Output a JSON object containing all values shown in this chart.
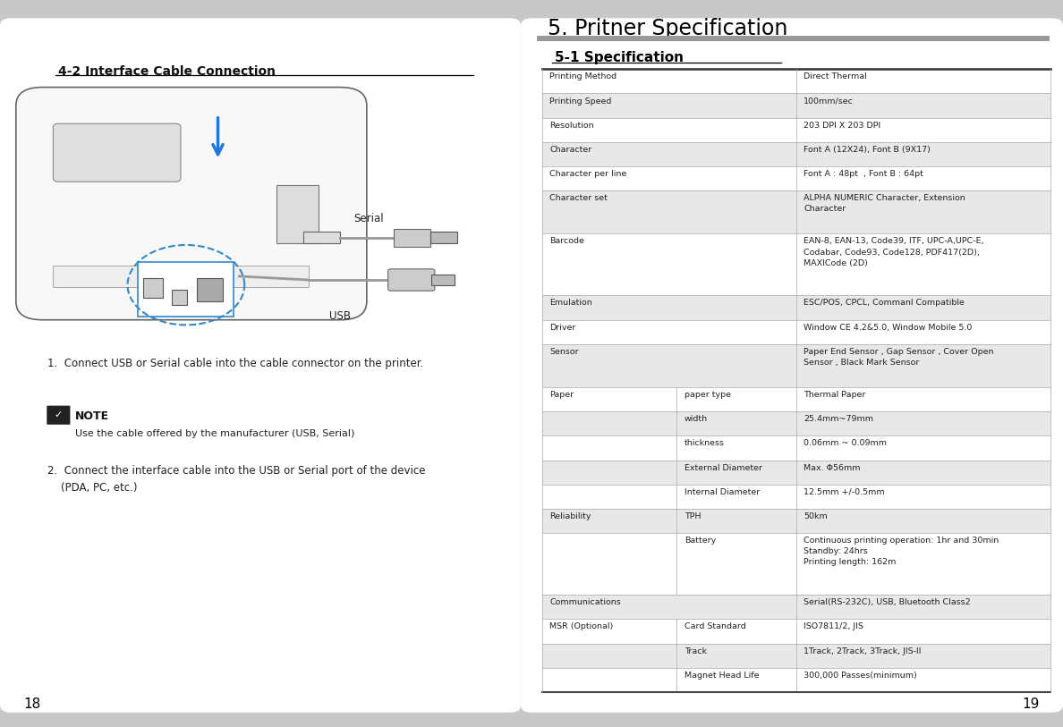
{
  "bg_color": "#c8c8c8",
  "page_bg": "#ffffff",
  "left_title": "4-2 Interface Cable Connection",
  "right_header": "5. Pritner Specification",
  "right_section_title": "5-1 Specification",
  "step1": "1.  Connect USB or Serial cable into the cable connector on the printer.",
  "note_title": "NOTE",
  "note_text": "Use the cable offered by the manufacturer (USB, Serial)",
  "step2": "2.  Connect the interface cable into the USB or Serial port of the device\n    (PDA, PC, etc.)",
  "page_left": "18",
  "page_right": "19",
  "table_rows": [
    {
      "col1": "Printing Method",
      "col2": "",
      "col3": "Direct Thermal",
      "shaded": false
    },
    {
      "col1": "Printing Speed",
      "col2": "",
      "col3": "100mm/sec",
      "shaded": true
    },
    {
      "col1": "Resolution",
      "col2": "",
      "col3": "203 DPI X 203 DPI",
      "shaded": false
    },
    {
      "col1": "Character",
      "col2": "",
      "col3": "Font A (12X24), Font B (9X17)",
      "shaded": true
    },
    {
      "col1": "Character per line",
      "col2": "",
      "col3": "Font A : 48pt  , Font B : 64pt",
      "shaded": false
    },
    {
      "col1": "Character set",
      "col2": "",
      "col3": "ALPHA NUMERIC Character, Extension\nCharacter",
      "shaded": true
    },
    {
      "col1": "Barcode",
      "col2": "",
      "col3": "EAN-8, EAN-13, Code39, ITF, UPC-A,UPC-E,\nCodabar, Code93, Code128, PDF417(2D),\nMAXICode (2D)",
      "shaded": false
    },
    {
      "col1": "Emulation",
      "col2": "",
      "col3": "ESC/POS, CPCL, Commanl Compatible",
      "shaded": true
    },
    {
      "col1": "Driver",
      "col2": "",
      "col3": "Window CE 4.2&5.0, Window Mobile 5.0",
      "shaded": false
    },
    {
      "col1": "Sensor",
      "col2": "",
      "col3": "Paper End Sensor , Gap Sensor , Cover Open\nSensor , Black Mark Sensor",
      "shaded": true
    },
    {
      "col1": "Paper",
      "col2": "paper type",
      "col3": "Thermal Paper",
      "shaded": false
    },
    {
      "col1": "",
      "col2": "width",
      "col3": "25.4mm~79mm",
      "shaded": true
    },
    {
      "col1": "",
      "col2": "thickness",
      "col3": "0.06mm ~ 0.09mm",
      "shaded": false
    },
    {
      "col1": "",
      "col2": "External Diameter",
      "col3": "Max. Φ56mm",
      "shaded": true
    },
    {
      "col1": "",
      "col2": "Internal Diameter",
      "col3": "12.5mm +/-0.5mm",
      "shaded": false
    },
    {
      "col1": "Reliability",
      "col2": "TPH",
      "col3": "50km",
      "shaded": true
    },
    {
      "col1": "",
      "col2": "Battery",
      "col3": "Continuous printing operation: 1hr and 30min\nStandby: 24hrs\nPrinting length: 162m",
      "shaded": false
    },
    {
      "col1": "Communications",
      "col2": "",
      "col3": "Serial(RS-232C), USB, Bluetooth Class2",
      "shaded": true
    },
    {
      "col1": "MSR (Optional)",
      "col2": "Card Standard",
      "col3": "ISO7811/2, JIS",
      "shaded": false
    },
    {
      "col1": "",
      "col2": "Track",
      "col3": "1Track, 2Track, 3Track, JIS-II",
      "shaded": true
    },
    {
      "col1": "",
      "col2": "Magnet Head Life",
      "col3": "300,000 Passes(minimum)",
      "shaded": false
    }
  ],
  "shaded_color": "#e8e8e8",
  "line_color": "#aaaaaa",
  "dark_line_color": "#555555",
  "text_color": "#222222",
  "bold_color": "#111111"
}
